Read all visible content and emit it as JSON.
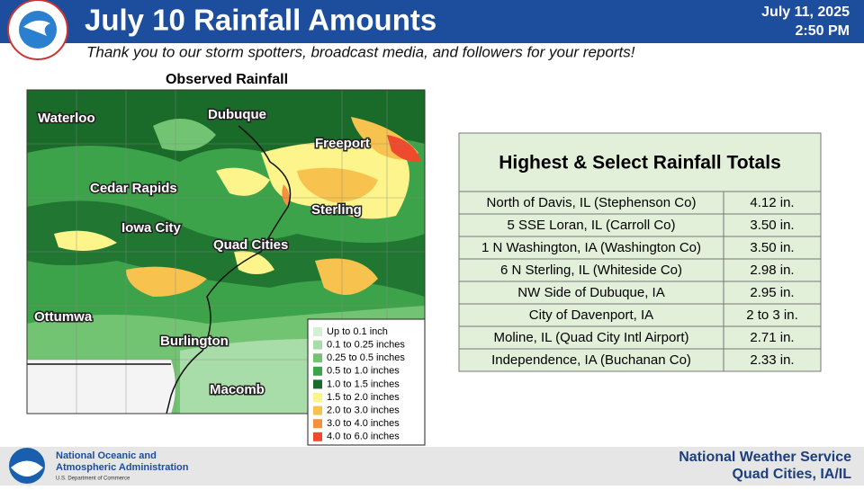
{
  "header": {
    "title": "July 10 Rainfall Amounts",
    "date": "July 11, 2025",
    "time": "2:50 PM",
    "subtitle": "Thank you to our storm spotters, broadcast media, and followers for your reports!"
  },
  "map": {
    "title": "Observed Rainfall",
    "cities": [
      "Waterloo",
      "Dubuque",
      "Freeport",
      "Cedar Rapids",
      "Sterling",
      "Iowa City",
      "Quad Cities",
      "Ottumwa",
      "Burlington",
      "Macomb"
    ],
    "legend": [
      {
        "label": "Up to 0.1 inch",
        "color": "#d4f0d4"
      },
      {
        "label": "0.1 to 0.25 inches",
        "color": "#a8dca8"
      },
      {
        "label": "0.25 to 0.5 inches",
        "color": "#72c472"
      },
      {
        "label": "0.5 to 1.0 inches",
        "color": "#3da34a"
      },
      {
        "label": "1.0 to 1.5 inches",
        "color": "#1a6b2a"
      },
      {
        "label": "1.5 to 2.0 inches",
        "color": "#fdf48c"
      },
      {
        "label": "2.0 to 3.0 inches",
        "color": "#f7c34e"
      },
      {
        "label": "3.0 to 4.0 inches",
        "color": "#f4913a"
      },
      {
        "label": "4.0 to 6.0 inches",
        "color": "#ee4a2e"
      }
    ]
  },
  "table": {
    "title": "Highest & Select Rainfall Totals",
    "rows": [
      [
        "North of Davis, IL (Stephenson Co)",
        "4.12 in."
      ],
      [
        "5 SSE Loran, IL (Carroll Co)",
        "3.50 in."
      ],
      [
        "1 N Washington, IA (Washington Co)",
        "3.50 in."
      ],
      [
        "6 N Sterling, IL (Whiteside Co)",
        "2.98 in."
      ],
      [
        "NW Side of Dubuque, IA",
        "2.95 in."
      ],
      [
        "City of Davenport, IA",
        "2 to 3 in."
      ],
      [
        "Moline, IL (Quad City Intl Airport)",
        "2.71 in."
      ],
      [
        "Independence, IA (Buchanan Co)",
        "2.33 in."
      ]
    ]
  },
  "footer": {
    "noaa_line1": "National Oceanic and",
    "noaa_line2": "Atmospheric Administration",
    "noaa_line3": "U.S. Department of Commerce",
    "office_line1": "National Weather Service",
    "office_line2": "Quad Cities, IA/IL"
  }
}
